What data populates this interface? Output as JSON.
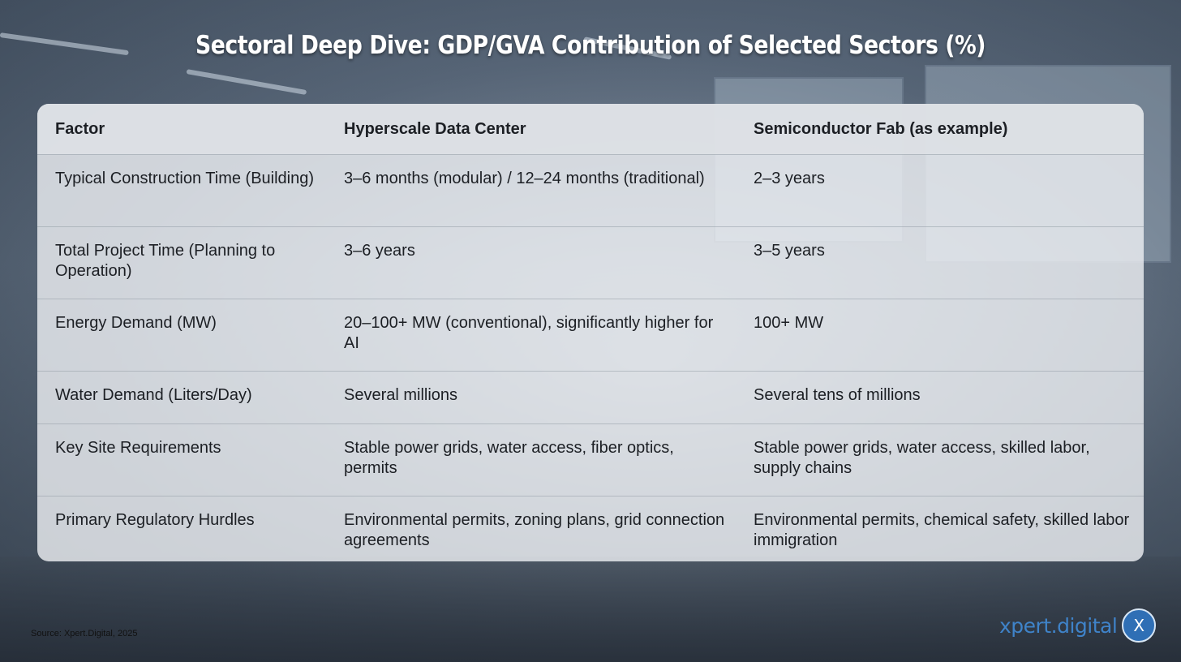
{
  "title": "Sectoral Deep Dive: GDP/GVA Contribution of Selected Sectors (%)",
  "table": {
    "headers": [
      "Factor",
      "Hyperscale Data Center",
      "Semiconductor Fab (as example)"
    ],
    "rows": [
      [
        "Typical Construction Time (Building)",
        "3–6 months (modular) / 12–24 months (traditional)",
        "2–3 years"
      ],
      [
        "Total Project Time (Planning to Operation)",
        "3–6 years",
        "3–5 years"
      ],
      [
        "Energy Demand (MW)",
        "20–100+ MW (conventional), significantly higher for AI",
        "100+ MW"
      ],
      [
        "Water Demand (Liters/Day)",
        "Several millions",
        "Several tens of millions"
      ],
      [
        "Key Site Requirements",
        "Stable power grids, water access, fiber optics, permits",
        "Stable power grids, water access, skilled labor, supply chains"
      ],
      [
        "Primary Regulatory Hurdles",
        "Environmental permits, zoning plans, grid connection agreements",
        "Environmental permits, chemical safety, skilled labor immigration"
      ]
    ]
  },
  "footer": {
    "source": "Source: Xpert.Digital, 2025",
    "brand": "xpert.digital",
    "logo_letter": "X"
  },
  "colors": {
    "title": "#ffffff",
    "brand": "#3f83c9",
    "logo_bg": "#2f6fb5"
  }
}
